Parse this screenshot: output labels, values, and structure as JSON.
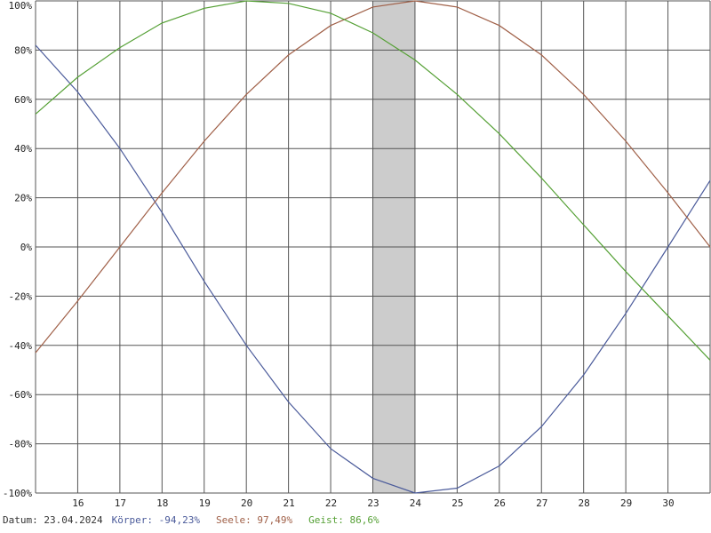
{
  "chart_data": {
    "type": "line",
    "x_ticks": [
      "16",
      "17",
      "18",
      "19",
      "20",
      "21",
      "22",
      "23",
      "24",
      "25",
      "26",
      "27",
      "28",
      "29",
      "30"
    ],
    "y_ticks": [
      "100%",
      "80%",
      "60%",
      "40%",
      "20%",
      "0%",
      "-20%",
      "-40%",
      "-60%",
      "-80%",
      "-100%"
    ],
    "xlim": [
      15,
      31
    ],
    "ylim": [
      -100,
      100
    ],
    "grid": true,
    "highlight": {
      "from": 23,
      "to": 24,
      "color": "#cccccc"
    },
    "x": [
      15,
      16,
      17,
      18,
      19,
      20,
      21,
      22,
      23,
      24,
      25,
      26,
      27,
      28,
      29,
      30,
      31
    ],
    "series": [
      {
        "key": "koerper",
        "color": "#4a5a9a",
        "values": [
          82,
          63,
          40,
          14,
          -14,
          -40,
          -63,
          -82,
          -94,
          -100,
          -98,
          -89,
          -73,
          -52,
          -27,
          0,
          27
        ]
      },
      {
        "key": "seele",
        "color": "#a06048",
        "values": [
          -43,
          -22,
          0,
          22,
          43,
          62,
          78,
          90,
          97.5,
          100,
          97.5,
          90,
          78,
          62,
          43,
          22,
          0
        ]
      },
      {
        "key": "geist",
        "color": "#55a035",
        "values": [
          54,
          69,
          81,
          91,
          97,
          100,
          99,
          95,
          87,
          76,
          62,
          46,
          28,
          9,
          -10,
          -28,
          -46
        ]
      }
    ]
  },
  "footer": {
    "date_label": "Datum:",
    "date_value": "23.04.2024",
    "koerper_label": "Körper:",
    "koerper_value": "-94,23%",
    "seele_label": "Seele:",
    "seele_value": "97,49%",
    "geist_label": "Geist:",
    "geist_value": "86,6%"
  }
}
